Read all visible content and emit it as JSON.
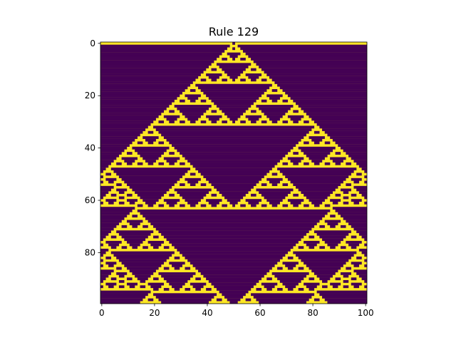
{
  "chart_data": {
    "type": "heatmap",
    "title": "Rule 129",
    "rule": 129,
    "rows": 100,
    "cols": 101,
    "initial_state": "single live cell at column 50",
    "boundary": "wrap",
    "x_ticks": [
      0,
      20,
      40,
      60,
      80,
      100
    ],
    "y_ticks": [
      0,
      20,
      40,
      60,
      80
    ],
    "xlim": [
      -0.5,
      100.5
    ],
    "ylim": [
      99.5,
      -0.5
    ],
    "grid": false,
    "legend": "none",
    "colors": {
      "on": "#440154",
      "off": "#fde725"
    }
  }
}
